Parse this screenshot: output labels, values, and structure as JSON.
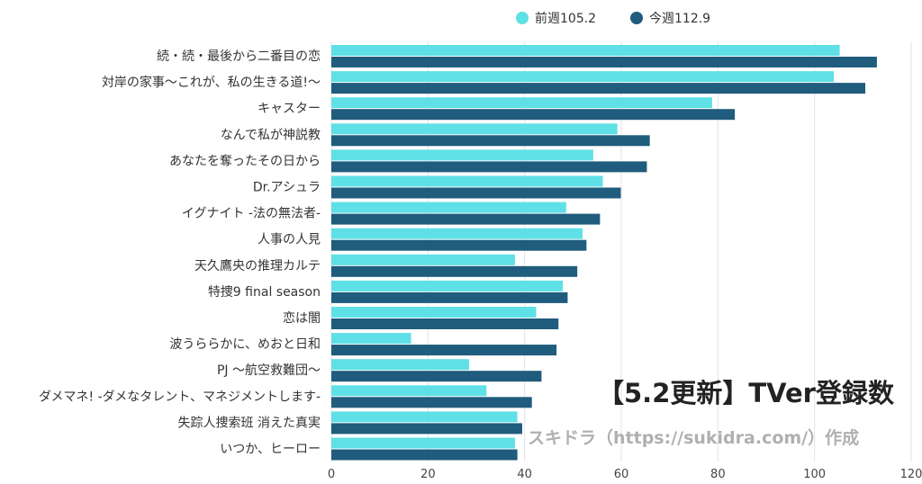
{
  "chart_data": {
    "type": "bar",
    "orientation": "horizontal",
    "categories": [
      "続・続・最後から二番目の恋",
      "対岸の家事〜これが、私の生きる道!〜",
      "キャスター",
      "なんで私が神説教",
      "あなたを奪ったその日から",
      "Dr.アシュラ",
      "イグナイト -法の無法者-",
      "人事の人見",
      "天久鷹央の推理カルテ",
      "特捜9 final season",
      "恋は闇",
      "波うららかに、めおと日和",
      "PJ 〜航空救難団〜",
      "ダメマネ! -ダメなタレント、マネジメントします-",
      "失踪人捜索班 消えた真実",
      "いつか、ヒーロー"
    ],
    "series": [
      {
        "name": "前週105.2",
        "color": "#5fe0e6",
        "values": [
          105.2,
          104.0,
          78.8,
          59.2,
          54.2,
          56.2,
          48.6,
          52.0,
          38.0,
          47.9,
          42.4,
          16.5,
          28.5,
          32.1,
          38.5,
          38.0
        ]
      },
      {
        "name": "今週112.9",
        "color": "#1f5c7d",
        "values": [
          112.9,
          110.5,
          83.5,
          65.9,
          65.3,
          59.9,
          55.6,
          52.8,
          50.9,
          48.9,
          47.0,
          46.6,
          43.5,
          41.5,
          39.5,
          38.5
        ]
      }
    ],
    "x_ticks": [
      "0",
      "20",
      "40",
      "60",
      "80",
      "100",
      "120"
    ],
    "xlim": [
      0,
      120
    ],
    "grid": true,
    "legend": "top-center",
    "title": "【5.2更新】TVer登録数",
    "credit": "スキドラ（https://sukidra.com/）作成"
  }
}
